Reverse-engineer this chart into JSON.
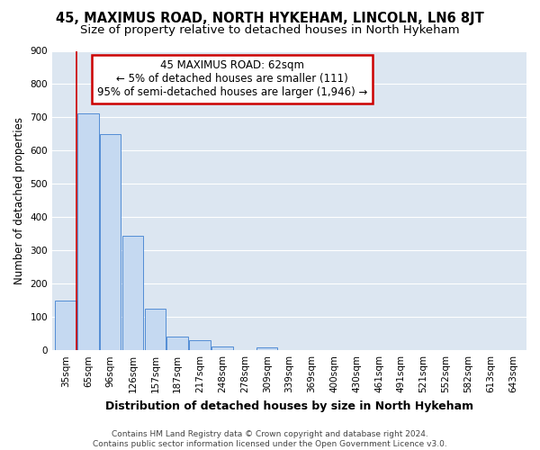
{
  "title": "45, MAXIMUS ROAD, NORTH HYKEHAM, LINCOLN, LN6 8JT",
  "subtitle": "Size of property relative to detached houses in North Hykeham",
  "xlabel": "Distribution of detached houses by size in North Hykeham",
  "ylabel": "Number of detached properties",
  "footer_line1": "Contains HM Land Registry data © Crown copyright and database right 2024.",
  "footer_line2": "Contains public sector information licensed under the Open Government Licence v3.0.",
  "categories": [
    "35sqm",
    "65sqm",
    "96sqm",
    "126sqm",
    "157sqm",
    "187sqm",
    "217sqm",
    "248sqm",
    "278sqm",
    "309sqm",
    "339sqm",
    "369sqm",
    "400sqm",
    "430sqm",
    "461sqm",
    "491sqm",
    "521sqm",
    "552sqm",
    "582sqm",
    "613sqm",
    "643sqm"
  ],
  "values": [
    148,
    712,
    651,
    343,
    126,
    40,
    30,
    12,
    0,
    8,
    0,
    0,
    0,
    0,
    0,
    0,
    0,
    0,
    0,
    0,
    0
  ],
  "bar_color": "#c5d9f1",
  "bar_edge_color": "#538dd5",
  "vline_x": 0.5,
  "vline_color": "#cc0000",
  "annotation_line1": "45 MAXIMUS ROAD: 62sqm",
  "annotation_line2": "← 5% of detached houses are smaller (111)",
  "annotation_line3": "95% of semi-detached houses are larger (1,946) →",
  "annotation_box_color": "#cc0000",
  "ylim": [
    0,
    900
  ],
  "yticks": [
    0,
    100,
    200,
    300,
    400,
    500,
    600,
    700,
    800,
    900
  ],
  "bg_color": "#ffffff",
  "plot_bg_color": "#dce6f1",
  "grid_color": "#ffffff",
  "title_fontsize": 10.5,
  "subtitle_fontsize": 9.5,
  "xlabel_fontsize": 9,
  "ylabel_fontsize": 8.5,
  "tick_fontsize": 7.5,
  "annotation_fontsize": 8.5,
  "footer_fontsize": 6.5
}
